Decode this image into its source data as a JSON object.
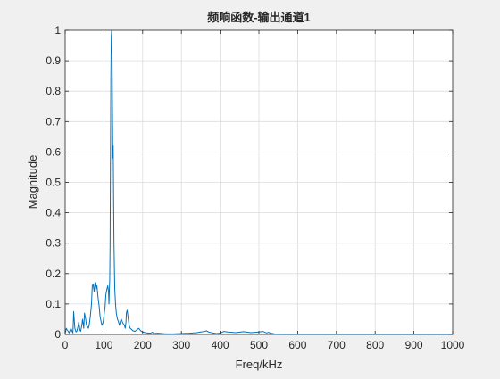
{
  "chart_data": {
    "type": "line",
    "title": "频响函数-输出通道1",
    "xlabel": "Freq/kHz",
    "ylabel": "Magnitude",
    "xlim": [
      0,
      1000
    ],
    "ylim": [
      0,
      1
    ],
    "xticks": [
      0,
      100,
      200,
      300,
      400,
      500,
      600,
      700,
      800,
      900,
      1000
    ],
    "yticks": [
      0,
      0.1,
      0.2,
      0.3,
      0.4,
      0.5,
      0.6,
      0.7,
      0.8,
      0.9,
      1
    ],
    "xtick_labels": [
      "0",
      "100",
      "200",
      "300",
      "400",
      "500",
      "600",
      "700",
      "800",
      "900",
      "1000"
    ],
    "ytick_labels": [
      "0",
      "0.1",
      "0.2",
      "0.3",
      "0.4",
      "0.5",
      "0.6",
      "0.7",
      "0.8",
      "0.9",
      "1"
    ],
    "grid": true,
    "line_color": "#0072bd",
    "series": [
      {
        "x": [
          0,
          3,
          5,
          8,
          10,
          12,
          15,
          18,
          20,
          22,
          25,
          28,
          30,
          33,
          35,
          38,
          40,
          43,
          45,
          48,
          50,
          53,
          55,
          58,
          60,
          62,
          65,
          68,
          70,
          72,
          75,
          77,
          80,
          82,
          85,
          88,
          90,
          93,
          95,
          98,
          100,
          103,
          105,
          108,
          110,
          112,
          113,
          115,
          116,
          117,
          118,
          119,
          120,
          121,
          122,
          123,
          124,
          125,
          126,
          128,
          130,
          132,
          135,
          138,
          140,
          143,
          145,
          148,
          150,
          153,
          155,
          157,
          158,
          160,
          163,
          165,
          168,
          170,
          175,
          180,
          185,
          190,
          195,
          200,
          210,
          220,
          225,
          230,
          240,
          250,
          260,
          280,
          300,
          320,
          340,
          350,
          360,
          365,
          370,
          380,
          390,
          400,
          410,
          420,
          440,
          460,
          480,
          500,
          510,
          520,
          525,
          530,
          540,
          560,
          600,
          650,
          700,
          750,
          800,
          850,
          900,
          950,
          1000
        ],
        "y": [
          0.003,
          0.02,
          0.015,
          0.01,
          0.005,
          0.012,
          0.02,
          0.01,
          0.005,
          0.075,
          0.02,
          0.008,
          0.01,
          0.025,
          0.04,
          0.015,
          0.01,
          0.03,
          0.05,
          0.02,
          0.07,
          0.05,
          0.03,
          0.025,
          0.02,
          0.03,
          0.06,
          0.1,
          0.16,
          0.165,
          0.14,
          0.17,
          0.15,
          0.16,
          0.12,
          0.09,
          0.06,
          0.04,
          0.03,
          0.04,
          0.06,
          0.09,
          0.13,
          0.15,
          0.16,
          0.14,
          0.1,
          0.18,
          0.3,
          0.6,
          0.85,
          0.98,
          1.0,
          0.92,
          0.75,
          0.58,
          0.62,
          0.45,
          0.3,
          0.15,
          0.1,
          0.07,
          0.05,
          0.04,
          0.03,
          0.045,
          0.05,
          0.04,
          0.035,
          0.03,
          0.02,
          0.04,
          0.07,
          0.08,
          0.05,
          0.03,
          0.02,
          0.018,
          0.012,
          0.01,
          0.015,
          0.02,
          0.012,
          0.008,
          0.005,
          0.004,
          0.007,
          0.003,
          0.004,
          0.003,
          0.002,
          0.002,
          0.003,
          0.004,
          0.006,
          0.008,
          0.01,
          0.012,
          0.008,
          0.005,
          0.003,
          0.004,
          0.01,
          0.008,
          0.006,
          0.009,
          0.006,
          0.008,
          0.01,
          0.005,
          0.007,
          0.004,
          0.002,
          0.001,
          0.001,
          0.001,
          0.001,
          0.001,
          0.001,
          0.001,
          0.001,
          0.001,
          0.001
        ]
      }
    ]
  }
}
